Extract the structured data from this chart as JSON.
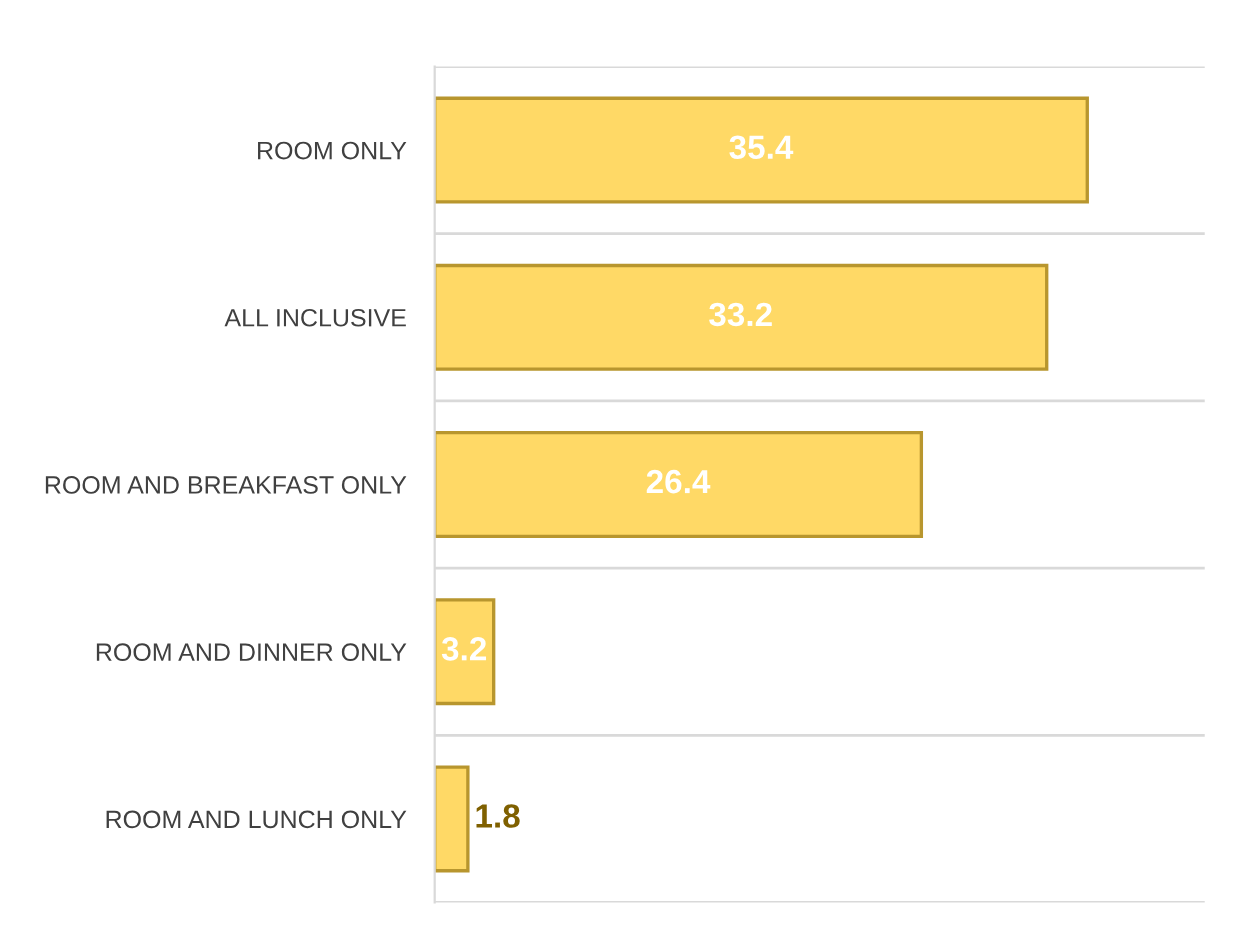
{
  "chart_data": {
    "type": "bar",
    "orientation": "horizontal",
    "categories": [
      "ROOM ONLY",
      "ALL INCLUSIVE",
      "ROOM AND BREAKFAST ONLY",
      "ROOM AND DINNER ONLY",
      "ROOM AND LUNCH ONLY"
    ],
    "values": [
      35.4,
      33.2,
      26.4,
      3.2,
      1.8
    ],
    "color": "#ffd966",
    "data_labels": true,
    "grid": "y"
  }
}
